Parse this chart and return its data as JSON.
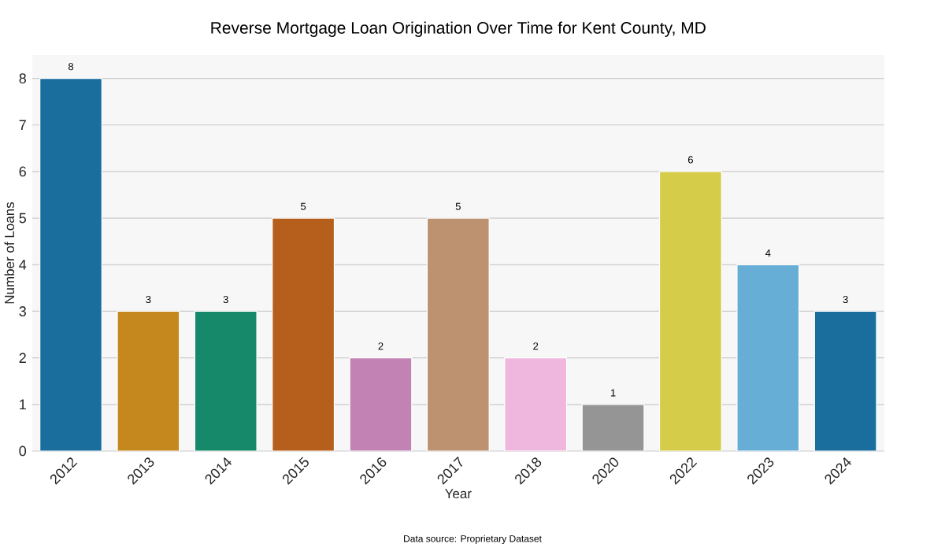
{
  "chart_data": {
    "type": "bar",
    "title": "Reverse Mortgage Loan Origination Over Time for Kent County, MD",
    "xlabel": "Year",
    "ylabel": "Number of Loans",
    "categories": [
      "2012",
      "2013",
      "2014",
      "2015",
      "2016",
      "2017",
      "2018",
      "2020",
      "2022",
      "2023",
      "2024"
    ],
    "values": [
      8,
      3,
      3,
      5,
      2,
      5,
      2,
      1,
      6,
      4,
      3
    ],
    "colors": [
      "#1a6e9e",
      "#c4881f",
      "#16896a",
      "#b65e1c",
      "#c283b4",
      "#bd9270",
      "#f0b7de",
      "#959595",
      "#d5cc4a",
      "#66aed6",
      "#1a6e9e"
    ],
    "ylim": [
      0,
      8.5
    ],
    "yticks": [
      0,
      1,
      2,
      3,
      4,
      5,
      6,
      7,
      8
    ],
    "grid": "y",
    "data_labels": true,
    "annotations": [
      "Data source: Proprietary Dataset"
    ]
  }
}
